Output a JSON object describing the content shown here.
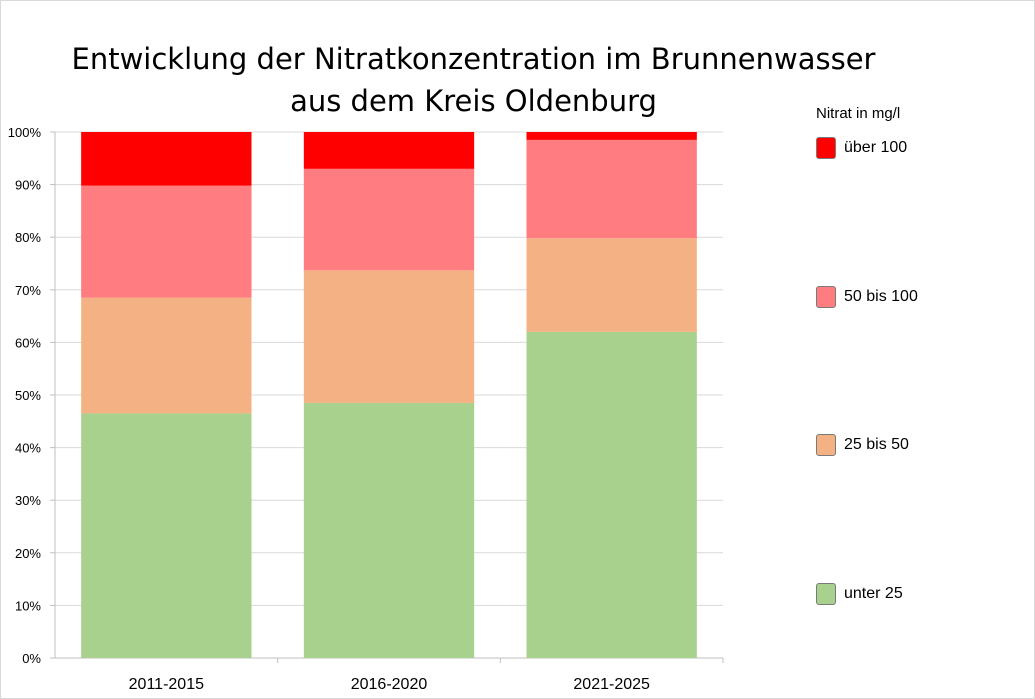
{
  "chart_data": {
    "type": "bar",
    "stacked": "percent",
    "title": [
      "Entwicklung der Nitratkonzentration im Brunnenwasser",
      "aus dem Kreis Oldenburg"
    ],
    "categories": [
      "2011-2015",
      "2016-2020",
      "2021-2025"
    ],
    "series": [
      {
        "name": "unter 25",
        "color": "#a9d18e",
        "values": [
          46.5,
          48.5,
          62.0
        ]
      },
      {
        "name": "25 bis 50",
        "color": "#f4b183",
        "values": [
          22.0,
          25.2,
          17.8
        ]
      },
      {
        "name": "50 bis 100",
        "color": "#ff7c80",
        "values": [
          21.3,
          19.3,
          18.7
        ]
      },
      {
        "name": "über 100",
        "color": "#ff0000",
        "values": [
          10.2,
          7.0,
          1.5
        ]
      }
    ],
    "ylim": [
      0,
      100
    ],
    "yticks": [
      "0%",
      "10%",
      "20%",
      "30%",
      "40%",
      "50%",
      "60%",
      "70%",
      "80%",
      "90%",
      "100%"
    ],
    "grid": true,
    "legend_title": "Nitrat in mg/l",
    "legend_placement": "right"
  }
}
